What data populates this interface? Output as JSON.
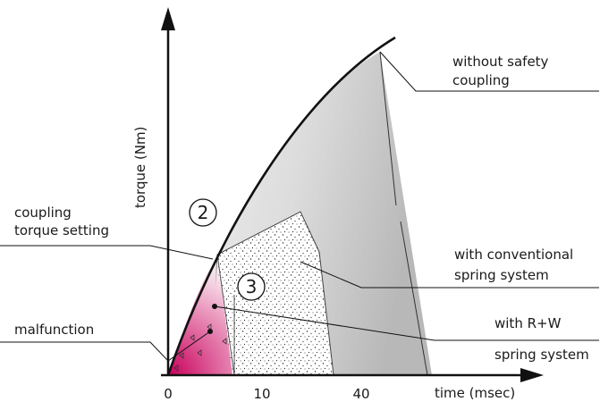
{
  "diagram": {
    "axis_labels": {
      "y": "torque (Nm)",
      "x": "time (msec)"
    },
    "x_ticks": [
      "0",
      "10",
      "40"
    ],
    "regions": {
      "without_safety": [
        "without safety",
        "coupling"
      ],
      "conventional": [
        "with conventional",
        "spring system"
      ],
      "rw": [
        "with R+W",
        "spring system"
      ]
    },
    "setting_label": [
      "coupling",
      "torque setting"
    ],
    "malfunction_label": "malfunction",
    "markers": {
      "two": "2",
      "three": "3"
    },
    "colors": {
      "magenta": "#c8005a",
      "axis": "#111111"
    }
  }
}
